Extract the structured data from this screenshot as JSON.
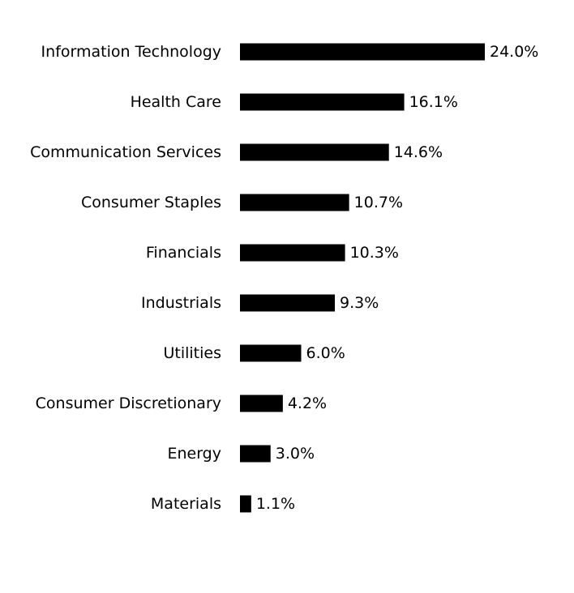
{
  "chart_data": {
    "type": "bar",
    "orientation": "horizontal",
    "categories": [
      "Information Technology",
      "Health Care",
      "Communication Services",
      "Consumer Staples",
      "Financials",
      "Industrials",
      "Utilities",
      "Consumer Discretionary",
      "Energy",
      "Materials"
    ],
    "values": [
      24.0,
      16.1,
      14.6,
      10.7,
      10.3,
      9.3,
      6.0,
      4.2,
      3.0,
      1.1
    ],
    "value_labels": [
      "24.0%",
      "16.1%",
      "14.6%",
      "10.7%",
      "10.3%",
      "9.3%",
      "6.0%",
      "4.2%",
      "3.0%",
      "1.1%"
    ],
    "unit": "%",
    "bar_color": "#000000",
    "title": "",
    "xlabel": "",
    "ylabel": "",
    "xlim": [
      0,
      24.0
    ],
    "grid": false,
    "legend": "none"
  }
}
